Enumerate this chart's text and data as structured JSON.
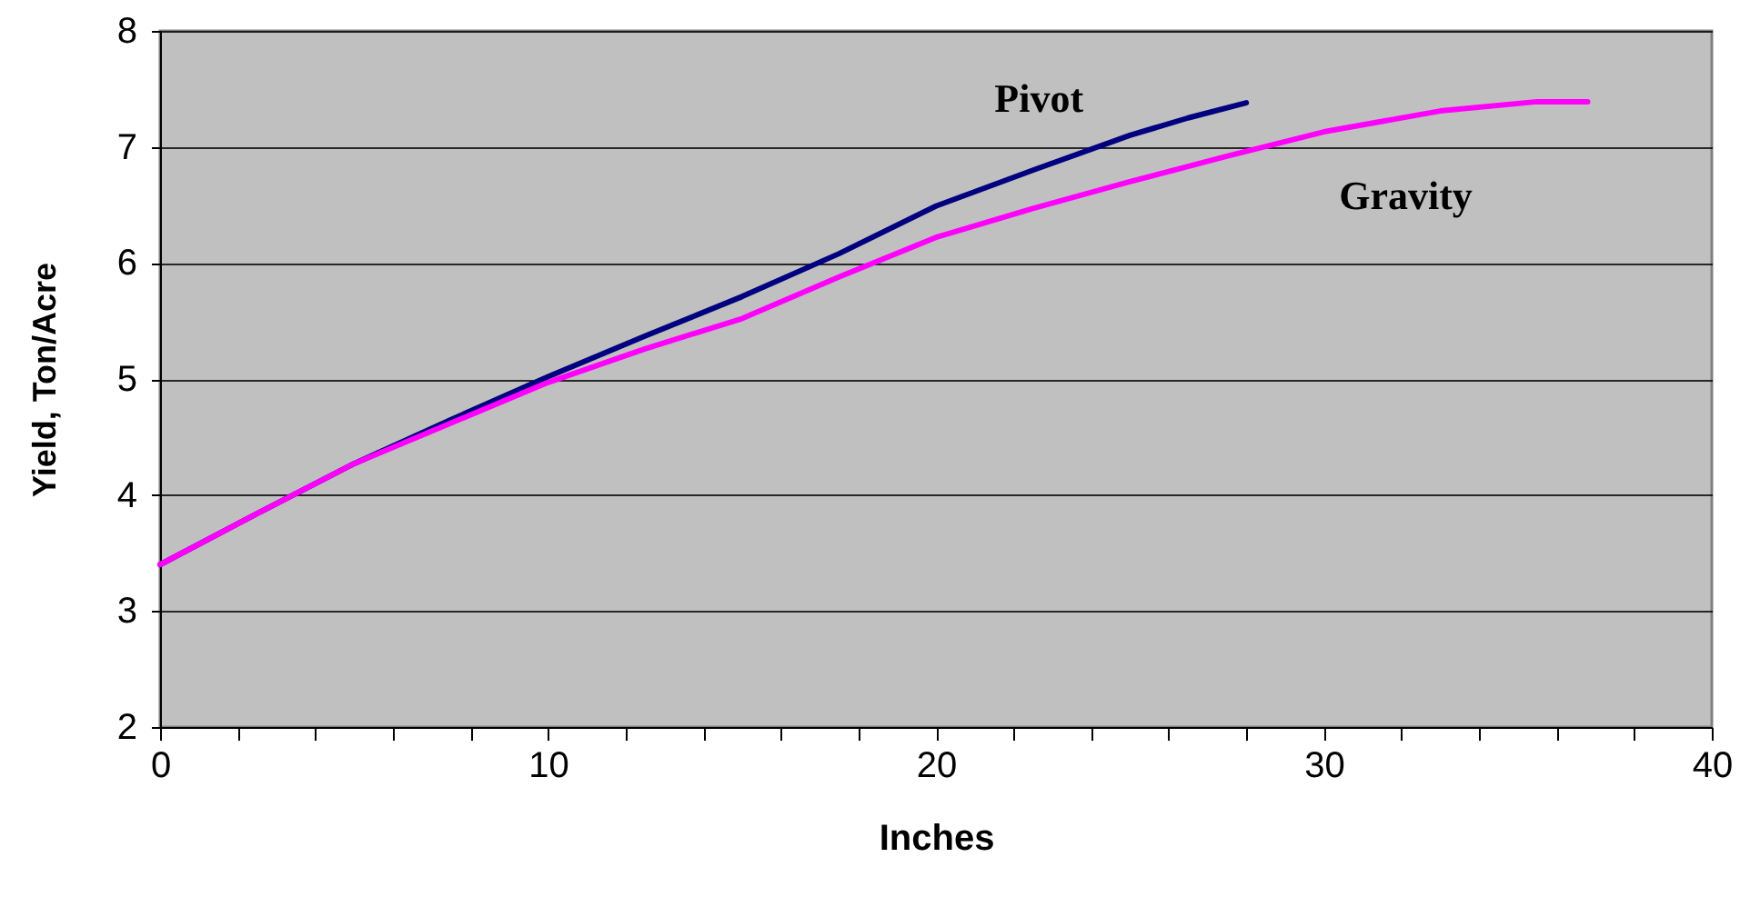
{
  "chart_data": {
    "type": "line",
    "xlabel": "Inches",
    "ylabel": "Yield, Ton/Acre",
    "xlim": [
      0,
      40
    ],
    "ylim": [
      2,
      8
    ],
    "xticks": [
      0,
      {
        "value": 2,
        "label": null
      },
      {
        "value": 4,
        "label": null
      },
      {
        "value": 6,
        "label": null
      },
      {
        "value": 8,
        "label": null
      },
      10,
      {
        "value": 12,
        "label": null
      },
      {
        "value": 14,
        "label": null
      },
      {
        "value": 16,
        "label": null
      },
      {
        "value": 18,
        "label": null
      },
      20,
      {
        "value": 22,
        "label": null
      },
      {
        "value": 24,
        "label": null
      },
      {
        "value": 26,
        "label": null
      },
      {
        "value": 28,
        "label": null
      },
      30,
      {
        "value": 32,
        "label": null
      },
      {
        "value": 34,
        "label": null
      },
      {
        "value": 36,
        "label": null
      },
      {
        "value": 38,
        "label": null
      },
      40
    ],
    "yticks": [
      2,
      3,
      4,
      5,
      6,
      7,
      8
    ],
    "grid": "y",
    "marker": "none",
    "line_style": "solid",
    "series": [
      {
        "name": "Pivot",
        "color": "#000080",
        "x": [
          0,
          2.5,
          5,
          7.5,
          10,
          12.5,
          15,
          17.5,
          20,
          22.5,
          25,
          26.5,
          28
        ],
        "values": [
          3.4,
          3.84,
          4.27,
          4.65,
          5.02,
          5.37,
          5.71,
          6.08,
          6.49,
          6.8,
          7.1,
          7.25,
          7.38
        ]
      },
      {
        "name": "Gravity",
        "color": "#ff00ff",
        "x": [
          0,
          2.5,
          5,
          7.5,
          10,
          12.5,
          15,
          17.5,
          20,
          22.5,
          25,
          27.5,
          30,
          33,
          35.5,
          36.8
        ],
        "values": [
          3.4,
          3.84,
          4.27,
          4.62,
          4.97,
          5.26,
          5.52,
          5.88,
          6.22,
          6.47,
          6.7,
          6.92,
          7.13,
          7.31,
          7.39,
          7.39
        ]
      }
    ]
  }
}
